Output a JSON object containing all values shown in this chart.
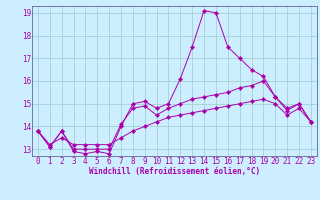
{
  "background_color": "#cceeff",
  "line_color": "#aa00aa",
  "grid_color": "#99cccc",
  "xlabel": "Windchill (Refroidissement éolien,°C)",
  "xlabel_fontsize": 5.5,
  "tick_fontsize": 5.5,
  "xlim": [
    -0.5,
    23.5
  ],
  "ylim": [
    12.7,
    19.3
  ],
  "yticks": [
    13,
    14,
    15,
    16,
    17,
    18,
    19
  ],
  "xticks": [
    0,
    1,
    2,
    3,
    4,
    5,
    6,
    7,
    8,
    9,
    10,
    11,
    12,
    13,
    14,
    15,
    16,
    17,
    18,
    19,
    20,
    21,
    22,
    23
  ],
  "series1_x": [
    0,
    1,
    2,
    3,
    4,
    5,
    6,
    7,
    8,
    9,
    10,
    11,
    12,
    13,
    14,
    15,
    16,
    17,
    18,
    19,
    20,
    21,
    22,
    23
  ],
  "series1_y": [
    13.8,
    13.1,
    13.8,
    12.9,
    12.8,
    12.9,
    12.8,
    14.0,
    15.0,
    15.1,
    14.8,
    15.0,
    16.1,
    17.5,
    19.1,
    19.0,
    17.5,
    17.0,
    16.5,
    16.2,
    15.3,
    14.7,
    15.0,
    14.2
  ],
  "series2_x": [
    0,
    1,
    2,
    3,
    4,
    5,
    6,
    7,
    8,
    9,
    10,
    11,
    12,
    13,
    14,
    15,
    16,
    17,
    18,
    19,
    20,
    21,
    22,
    23
  ],
  "series2_y": [
    13.8,
    13.1,
    13.8,
    13.0,
    13.0,
    13.0,
    13.0,
    14.1,
    14.8,
    14.9,
    14.5,
    14.8,
    15.0,
    15.2,
    15.3,
    15.4,
    15.5,
    15.7,
    15.8,
    16.0,
    15.3,
    14.8,
    15.0,
    14.2
  ],
  "series3_x": [
    0,
    1,
    2,
    3,
    4,
    5,
    6,
    7,
    8,
    9,
    10,
    11,
    12,
    13,
    14,
    15,
    16,
    17,
    18,
    19,
    20,
    21,
    22,
    23
  ],
  "series3_y": [
    13.8,
    13.2,
    13.5,
    13.2,
    13.2,
    13.2,
    13.2,
    13.5,
    13.8,
    14.0,
    14.2,
    14.4,
    14.5,
    14.6,
    14.7,
    14.8,
    14.9,
    15.0,
    15.1,
    15.2,
    15.0,
    14.5,
    14.8,
    14.2
  ],
  "spine_color": "#666699"
}
